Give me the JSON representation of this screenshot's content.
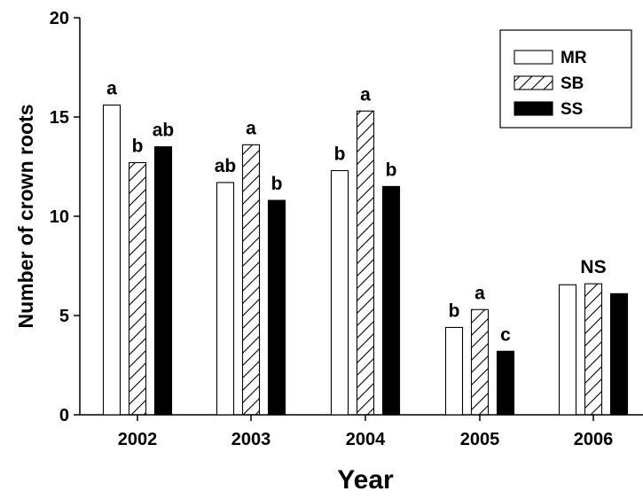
{
  "chart_data": {
    "type": "bar",
    "title": "",
    "xlabel": "Year",
    "ylabel": "Number of crown roots",
    "ylim": [
      0,
      20
    ],
    "yticks": [
      0,
      5,
      10,
      15,
      20
    ],
    "categories": [
      "2002",
      "2003",
      "2004",
      "2005",
      "2006"
    ],
    "series": [
      {
        "name": "MR",
        "pattern": "open",
        "values": [
          15.6,
          11.7,
          12.3,
          4.4,
          6.55
        ]
      },
      {
        "name": "SB",
        "pattern": "hatched",
        "values": [
          12.7,
          13.6,
          15.3,
          5.3,
          6.6
        ]
      },
      {
        "name": "SS",
        "pattern": "solid",
        "values": [
          13.5,
          10.8,
          11.5,
          3.2,
          6.1
        ]
      }
    ],
    "significance_labels": [
      [
        "a",
        "b",
        "ab"
      ],
      [
        "ab",
        "a",
        "b"
      ],
      [
        "b",
        "a",
        "b"
      ],
      [
        "b",
        "a",
        "c"
      ],
      [
        "NS"
      ]
    ],
    "legend_position": "top-right",
    "grid": false,
    "colors": {
      "open": "#ffffff",
      "solid": "#000000",
      "stroke": "#000000"
    }
  }
}
